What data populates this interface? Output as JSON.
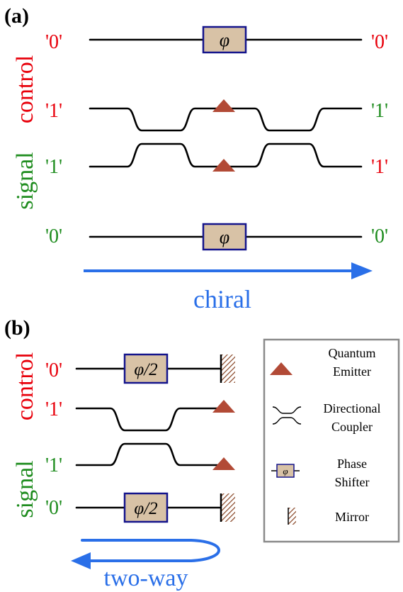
{
  "panel_a": {
    "label": "(a)",
    "side_label_top": "control",
    "side_label_bottom": "signal",
    "rows": [
      {
        "left": "'0'",
        "right": "'0'"
      },
      {
        "left": "'1'",
        "right": "'1'"
      },
      {
        "left": "'1'",
        "right": "'1'"
      },
      {
        "left": "'0'",
        "right": "'0'"
      }
    ],
    "phase_symbol": "φ",
    "arrow_label": "chiral"
  },
  "panel_b": {
    "label": "(b)",
    "side_label_top": "control",
    "side_label_bottom": "signal",
    "rows": [
      {
        "left": "'0'"
      },
      {
        "left": "'1'"
      },
      {
        "left": "'1'"
      },
      {
        "left": "'0'"
      }
    ],
    "phase_symbol": "φ/2",
    "arrow_label": "two-way"
  },
  "legend": {
    "emitter": [
      "Quantum",
      "Emitter"
    ],
    "coupler": [
      "Directional",
      "Coupler"
    ],
    "shifter": [
      "Phase",
      "Shifter"
    ],
    "shifter_symbol": "φ",
    "mirror": "Mirror"
  },
  "colors": {
    "red": "#e8000b",
    "green": "#1e8c1e",
    "blue": "#2a6fe8",
    "emitter": "#b24a36",
    "box_fill": "#d8c2a6",
    "box_stroke": "#14148c",
    "mirror": "#8b4a2b"
  }
}
